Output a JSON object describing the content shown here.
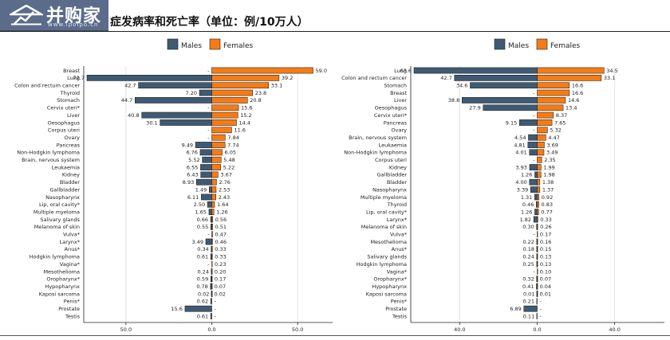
{
  "header": {
    "logo_text": "并购家",
    "logo_site": "www.ipoipo.cn",
    "title": "症发病率和死亡率（单位：例/10万人）"
  },
  "colors": {
    "males": "#3f5a73",
    "females": "#f47b16",
    "grid": "#e3e3e3",
    "axis": "#222222"
  },
  "chart_data": [
    {
      "type": "bar",
      "orientation": "horizontal-diverging",
      "legend": [
        "Males",
        "Females"
      ],
      "legend_position": "top",
      "xlim": [
        -72.7,
        59.0
      ],
      "xticks": [
        -50,
        0,
        50
      ],
      "xtick_labels": [
        "50.0",
        "0.0",
        "50.0"
      ],
      "grid": true,
      "rows": [
        {
          "label": "Breast",
          "m": null,
          "f": 59.0,
          "ml": "-",
          "fl": "59.0"
        },
        {
          "label": "Lung",
          "m": 72.7,
          "f": 39.2,
          "ml": "72.7",
          "fl": "39.2"
        },
        {
          "label": "Colon and rectum cancer",
          "m": 42.7,
          "f": 33.1,
          "ml": "42.7",
          "fl": "33.1"
        },
        {
          "label": "Thyroid",
          "m": 7.2,
          "f": 23.8,
          "ml": "7.20",
          "fl": "23.8"
        },
        {
          "label": "Stomach",
          "m": 44.7,
          "f": 20.8,
          "ml": "44.7",
          "fl": "20.8"
        },
        {
          "label": "Cervix uteri*",
          "m": null,
          "f": 15.6,
          "ml": "-",
          "fl": "15.6"
        },
        {
          "label": "Liver",
          "m": 40.8,
          "f": 15.2,
          "ml": "40.8",
          "fl": "15.2"
        },
        {
          "label": "Oesophagus",
          "m": 30.1,
          "f": 14.4,
          "ml": "30.1",
          "fl": "14.4"
        },
        {
          "label": "Corpus uteri",
          "m": null,
          "f": 11.6,
          "ml": "-",
          "fl": "11.6"
        },
        {
          "label": "Ovary",
          "m": null,
          "f": 7.84,
          "ml": "-",
          "fl": "7.84"
        },
        {
          "label": "Pancreas",
          "m": 9.49,
          "f": 7.74,
          "ml": "9.49",
          "fl": "7.74"
        },
        {
          "label": "Non-Hodgkin lymphoma",
          "m": 6.76,
          "f": 6.05,
          "ml": "6.76",
          "fl": "6.05"
        },
        {
          "label": "Brain, nervous system",
          "m": 5.52,
          "f": 5.48,
          "ml": "5.52",
          "fl": "5.48"
        },
        {
          "label": "Leukaemia",
          "m": 6.55,
          "f": 5.22,
          "ml": "6.55",
          "fl": "5.22"
        },
        {
          "label": "Kidney",
          "m": 6.43,
          "f": 3.67,
          "ml": "6.43",
          "fl": "3.67"
        },
        {
          "label": "Bladder",
          "m": 8.93,
          "f": 2.76,
          "ml": "8.93",
          "fl": "2.76"
        },
        {
          "label": "Gallbladder",
          "m": 1.49,
          "f": 2.53,
          "ml": "1.49",
          "fl": "2.53"
        },
        {
          "label": "Nasopharynx",
          "m": 6.11,
          "f": 2.43,
          "ml": "6.11",
          "fl": "2.43"
        },
        {
          "label": "Lip, oral cavity*",
          "m": 2.5,
          "f": 1.64,
          "ml": "2.50",
          "fl": "1.64"
        },
        {
          "label": "Multiple myeloma",
          "m": 1.65,
          "f": 1.26,
          "ml": "1.65",
          "fl": "1.26"
        },
        {
          "label": "Salivary glands",
          "m": 0.66,
          "f": 0.56,
          "ml": "0.66",
          "fl": "0.56"
        },
        {
          "label": "Melanoma of skin",
          "m": 0.55,
          "f": 0.51,
          "ml": "0.55",
          "fl": "0.51"
        },
        {
          "label": "Vulva*",
          "m": null,
          "f": 0.47,
          "ml": "-",
          "fl": "0.47"
        },
        {
          "label": "Larynx*",
          "m": 3.49,
          "f": 0.46,
          "ml": "3.49",
          "fl": "0.46"
        },
        {
          "label": "Anus*",
          "m": 0.34,
          "f": 0.33,
          "ml": "0.34",
          "fl": "0.33"
        },
        {
          "label": "Hodgkin lymphoma",
          "m": 0.61,
          "f": 0.33,
          "ml": "0.61",
          "fl": "0.33"
        },
        {
          "label": "Vagina*",
          "m": null,
          "f": 0.23,
          "ml": "-",
          "fl": "0.23"
        },
        {
          "label": "Mesothelioma",
          "m": 0.24,
          "f": 0.2,
          "ml": "0.24",
          "fl": "0.20"
        },
        {
          "label": "Oropharynx*",
          "m": 0.59,
          "f": 0.17,
          "ml": "0.59",
          "fl": "0.17"
        },
        {
          "label": "Hypopharynx",
          "m": 0.78,
          "f": 0.07,
          "ml": "0.78",
          "fl": "0.07"
        },
        {
          "label": "Kaposi sarcoma",
          "m": 0.02,
          "f": 0.02,
          "ml": "0.02",
          "fl": "0.02"
        },
        {
          "label": "Penis*",
          "m": 0.62,
          "f": null,
          "ml": "0.62",
          "fl": "-"
        },
        {
          "label": "Prostate",
          "m": 15.6,
          "f": null,
          "ml": "15.6",
          "fl": "-"
        },
        {
          "label": "Testis",
          "m": 0.61,
          "f": null,
          "ml": "0.61",
          "fl": "-"
        }
      ]
    },
    {
      "type": "bar",
      "orientation": "horizontal-diverging",
      "legend": [
        "Males",
        "Females"
      ],
      "legend_position": "top",
      "xlim": [
        -63.6,
        34.5
      ],
      "xticks": [
        -40,
        0,
        40
      ],
      "xtick_labels": [
        "40.0",
        "0.0",
        "40.0"
      ],
      "grid": true,
      "rows": [
        {
          "label": "Lung",
          "m": 63.6,
          "f": 34.5,
          "ml": "63.6",
          "fl": "34.5"
        },
        {
          "label": "Colon and rectum cancer",
          "m": 42.7,
          "f": 33.1,
          "ml": "42.7",
          "fl": "33.1"
        },
        {
          "label": "Stomach",
          "m": 34.6,
          "f": 16.6,
          "ml": "34.6",
          "fl": "16.6"
        },
        {
          "label": "Breast",
          "m": null,
          "f": 16.6,
          "ml": "-",
          "fl": "16.6"
        },
        {
          "label": "Liver",
          "m": 38.8,
          "f": 14.6,
          "ml": "38.8",
          "fl": "14.6"
        },
        {
          "label": "Oesophagus",
          "m": 27.9,
          "f": 13.4,
          "ml": "27.9",
          "fl": "13.4"
        },
        {
          "label": "Cervix uteri*",
          "m": null,
          "f": 8.37,
          "ml": "-",
          "fl": "8.37"
        },
        {
          "label": "Pancreas",
          "m": 9.15,
          "f": 7.65,
          "ml": "9.15",
          "fl": "7.65"
        },
        {
          "label": "Ovary",
          "m": null,
          "f": 5.32,
          "ml": "-",
          "fl": "5.32"
        },
        {
          "label": "Brain, nervous system",
          "m": 4.54,
          "f": 4.47,
          "ml": "4.54",
          "fl": "4.47"
        },
        {
          "label": "Leukaemia",
          "m": 4.81,
          "f": 3.69,
          "ml": "4.81",
          "fl": "3.69"
        },
        {
          "label": "Non-Hodgkin lymphoma",
          "m": 4.01,
          "f": 3.49,
          "ml": "4.01",
          "fl": "3.49"
        },
        {
          "label": "Corpus uteri",
          "m": null,
          "f": 2.35,
          "ml": "-",
          "fl": "2.35"
        },
        {
          "label": "Kidney",
          "m": 3.93,
          "f": 1.99,
          "ml": "3.93",
          "fl": "1.99"
        },
        {
          "label": "Gallbladder",
          "m": 1.26,
          "f": 1.98,
          "ml": "1.26",
          "fl": "1.98"
        },
        {
          "label": "Bladder",
          "m": 4.0,
          "f": 1.38,
          "ml": "4.00",
          "fl": "1.38"
        },
        {
          "label": "Nasopharynx",
          "m": 3.39,
          "f": 1.37,
          "ml": "3.39",
          "fl": "1.37"
        },
        {
          "label": "Multiple myeloma",
          "m": 1.31,
          "f": 0.92,
          "ml": "1.31",
          "fl": "0.92"
        },
        {
          "label": "Thyroid",
          "m": 0.46,
          "f": 0.83,
          "ml": "0.46",
          "fl": "0.83"
        },
        {
          "label": "Lip, oral cavity*",
          "m": 1.26,
          "f": 0.77,
          "ml": "1.26",
          "fl": "0.77"
        },
        {
          "label": "Larynx*",
          "m": 1.82,
          "f": 0.33,
          "ml": "1.82",
          "fl": "0.33"
        },
        {
          "label": "Melanoma of skin",
          "m": 0.3,
          "f": 0.26,
          "ml": "0.30",
          "fl": "0.26"
        },
        {
          "label": "Vulva*",
          "m": null,
          "f": 0.17,
          "ml": "-",
          "fl": "0.17"
        },
        {
          "label": "Mesothelioma",
          "m": 0.22,
          "f": 0.16,
          "ml": "0.22",
          "fl": "0.16"
        },
        {
          "label": "Anus*",
          "m": 0.18,
          "f": 0.15,
          "ml": "0.18",
          "fl": "0.15"
        },
        {
          "label": "Salivary glands",
          "m": 0.24,
          "f": 0.13,
          "ml": "0.24",
          "fl": "0.13"
        },
        {
          "label": "Hodgkin lymphoma",
          "m": 0.25,
          "f": 0.13,
          "ml": "0.25",
          "fl": "0.13"
        },
        {
          "label": "Vagina*",
          "m": null,
          "f": 0.1,
          "ml": "-",
          "fl": "0.10"
        },
        {
          "label": "Oropharynx*",
          "m": 0.32,
          "f": 0.07,
          "ml": "0.32",
          "fl": "0.07"
        },
        {
          "label": "Hypopharynx",
          "m": 0.41,
          "f": 0.04,
          "ml": "0.41",
          "fl": "0.04"
        },
        {
          "label": "Kaposi sarcoma",
          "m": 0.01,
          "f": 0.01,
          "ml": "0.01",
          "fl": "0.01"
        },
        {
          "label": "Penis*",
          "m": 0.21,
          "f": null,
          "ml": "0.21",
          "fl": "-"
        },
        {
          "label": "Prostate",
          "m": 6.89,
          "f": null,
          "ml": "6.89",
          "fl": "-"
        },
        {
          "label": "Testis",
          "m": 0.11,
          "f": null,
          "ml": "0.11",
          "fl": "-"
        }
      ]
    }
  ]
}
